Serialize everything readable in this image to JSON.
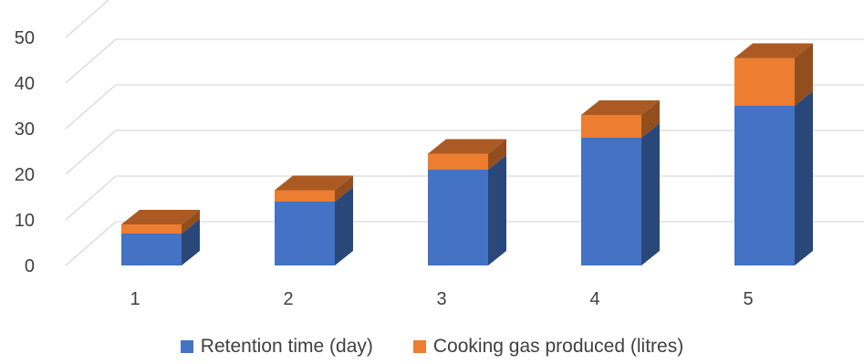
{
  "chart_data": {
    "type": "bar",
    "stacked": true,
    "three_d": true,
    "categories": [
      "1",
      "2",
      "3",
      "4",
      "5"
    ],
    "series": [
      {
        "name": "Retention time (day)",
        "values": [
          7,
          14,
          21,
          28,
          35
        ],
        "color": "#4472C4"
      },
      {
        "name": "Cooking gas produced (litres)",
        "values": [
          2,
          2.5,
          3.5,
          5,
          10.5
        ],
        "color": "#ED7D31"
      }
    ],
    "y_ticks": [
      "0",
      "10",
      "20",
      "30",
      "40",
      "50"
    ],
    "ylim": [
      0,
      50
    ],
    "grid": true,
    "legend_position": "bottom"
  }
}
